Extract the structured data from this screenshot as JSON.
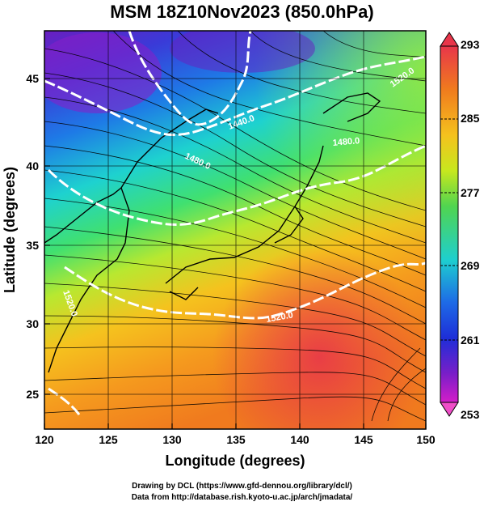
{
  "title": "MSM 18Z10Nov2023 (850.0hPa)",
  "map": {
    "x_ticks": [
      "120",
      "125",
      "130",
      "135",
      "140",
      "145",
      "150"
    ],
    "y_ticks": [
      "25",
      "30",
      "35",
      "40",
      "45"
    ],
    "xlabel": "Longitude (degrees)",
    "ylabel": "Latitude  (degrees)",
    "contour_labels": [
      "1440.0",
      "1480.0",
      "1480.0",
      "1520.0",
      "1520.0",
      "1520.0"
    ]
  },
  "colorbar": {
    "ticks": [
      "293",
      "285",
      "277",
      "269",
      "261",
      "253"
    ],
    "colors": [
      "#e8364a",
      "#f07a1e",
      "#f5c21e",
      "#c7e81e",
      "#50d450",
      "#1ecfcf",
      "#1e6ae6",
      "#1e2ed8",
      "#7a1ec8",
      "#d41ec8"
    ]
  },
  "credits": {
    "line1": "Drawing by DCL (https://www.gfd-dennou.org/library/dcl/)",
    "line2": "Data from http://database.rish.kyoto-u.ac.jp/arch/jmadata/"
  }
}
